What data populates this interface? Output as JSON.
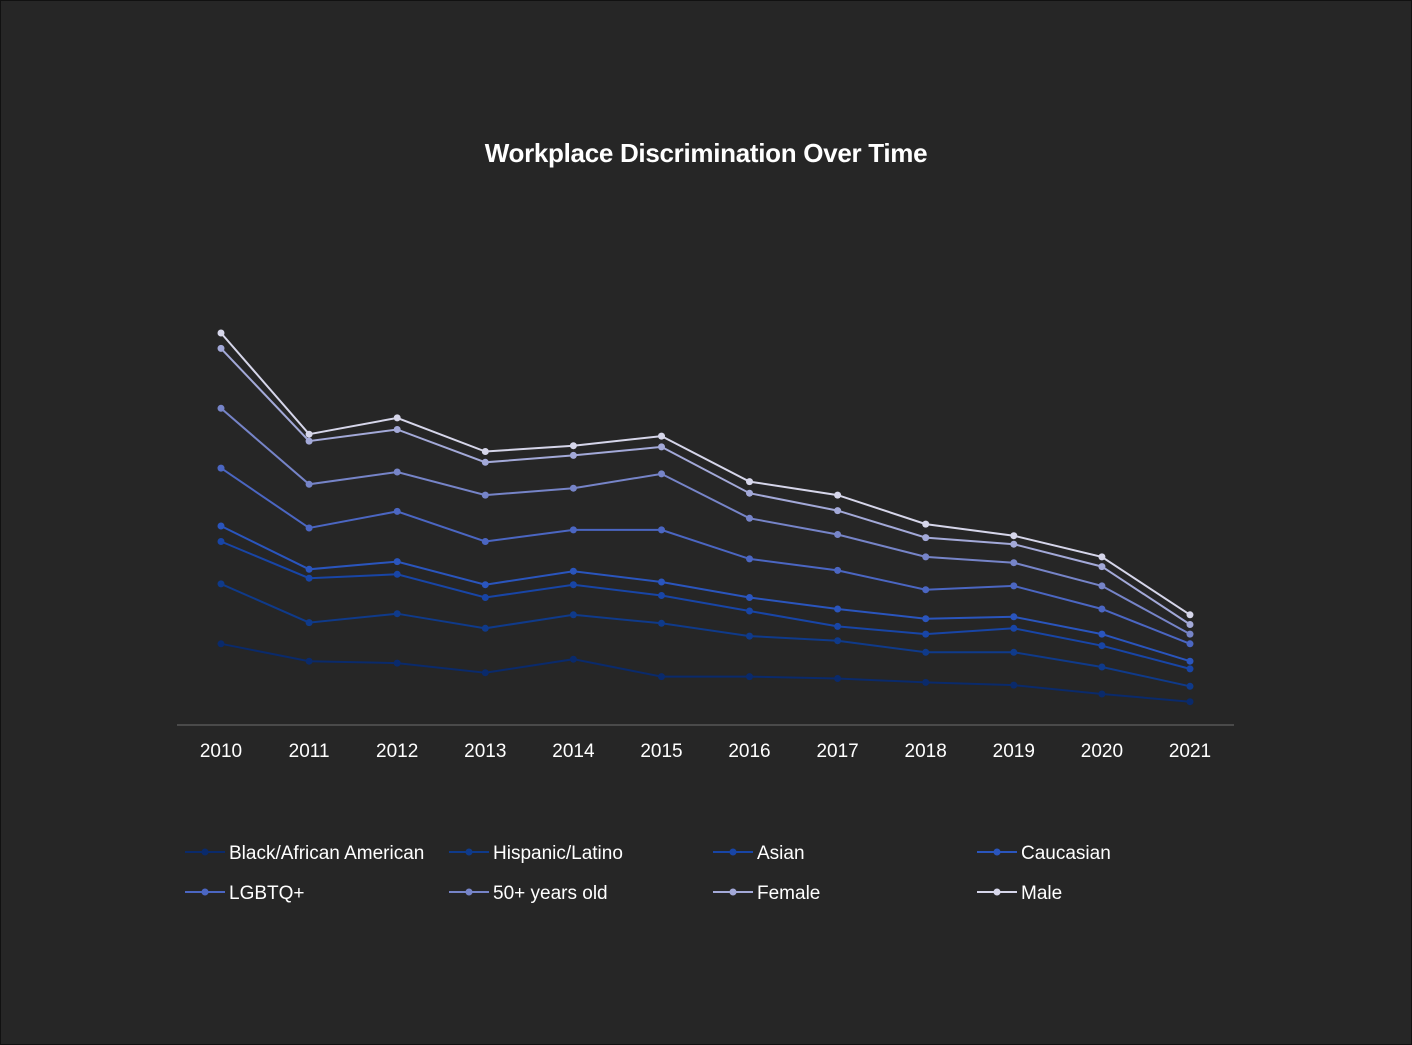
{
  "chart_data": {
    "type": "line",
    "title": "Workplace Discrimination Over Time",
    "xlabel": "",
    "ylabel": "",
    "ylim": [
      0,
      100
    ],
    "grid": false,
    "legend_position": "bottom",
    "x": [
      "2010",
      "2011",
      "2012",
      "2013",
      "2014",
      "2015",
      "2016",
      "2017",
      "2018",
      "2019",
      "2020",
      "2021"
    ],
    "series": [
      {
        "name": "Black/African American",
        "color": "#0a2a6b",
        "values": [
          20.0,
          15.5,
          15.0,
          12.5,
          16.0,
          11.5,
          11.5,
          11.0,
          10.0,
          9.3,
          7.0,
          5.0
        ]
      },
      {
        "name": "Hispanic/Latino",
        "color": "#0f3a8a",
        "values": [
          35.5,
          25.5,
          27.8,
          24.0,
          27.5,
          25.3,
          22.0,
          20.8,
          17.8,
          17.8,
          14.0,
          9.0
        ]
      },
      {
        "name": "Asian",
        "color": "#1845a6",
        "values": [
          46.5,
          37.0,
          38.0,
          32.0,
          35.3,
          32.5,
          28.5,
          24.5,
          22.5,
          24.0,
          19.5,
          13.5
        ]
      },
      {
        "name": "Caucasian",
        "color": "#2a55bd",
        "values": [
          50.5,
          39.3,
          41.3,
          35.3,
          38.8,
          36.0,
          32.0,
          29.0,
          26.5,
          27.0,
          22.5,
          15.5
        ]
      },
      {
        "name": "LGBTQ+",
        "color": "#4b66c2",
        "values": [
          65.5,
          50.0,
          54.3,
          46.5,
          49.5,
          49.5,
          42.0,
          39.0,
          34.0,
          35.0,
          29.0,
          20.0
        ]
      },
      {
        "name": "50+ years old",
        "color": "#7684c8",
        "values": [
          81.0,
          61.3,
          64.5,
          58.5,
          60.3,
          64.0,
          52.5,
          48.3,
          42.5,
          41.0,
          35.0,
          22.5
        ]
      },
      {
        "name": "Female",
        "color": "#a3a9d8",
        "values": [
          96.5,
          72.5,
          75.5,
          67.0,
          68.8,
          71.0,
          59.0,
          54.5,
          47.5,
          45.8,
          40.0,
          25.0
        ]
      },
      {
        "name": "Male",
        "color": "#d6d6ea",
        "values": [
          100.5,
          74.3,
          78.5,
          69.8,
          71.3,
          73.8,
          62.0,
          58.5,
          51.0,
          48.0,
          42.5,
          27.5
        ]
      }
    ]
  }
}
